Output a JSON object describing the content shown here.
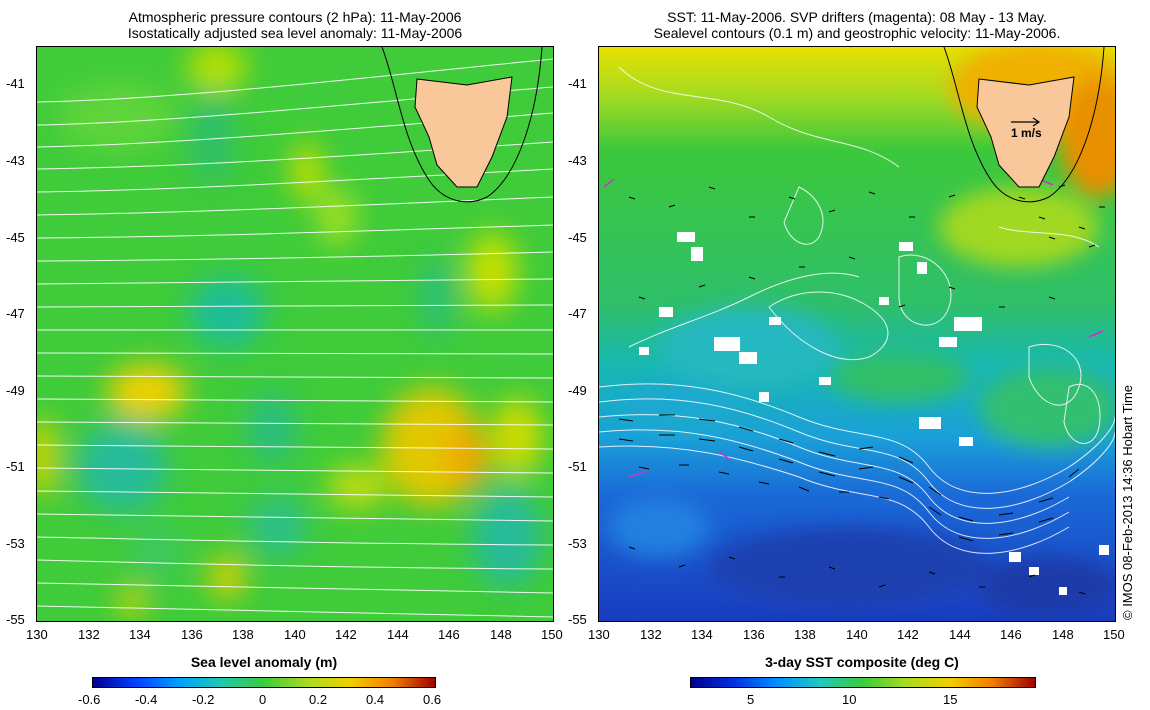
{
  "left_panel": {
    "title_line1": "Atmospheric pressure contours (2 hPa): 11-May-2006",
    "title_line2": "Isostatically adjusted sea level anomaly: 11-May-2006",
    "colorbar_label": "Sea level anomaly (m)",
    "colorbar_ticks": [
      "-0.6",
      "-0.4",
      "-0.2",
      "0",
      "0.2",
      "0.4",
      "0.6"
    ],
    "x_ticks": [
      "130",
      "132",
      "134",
      "136",
      "138",
      "140",
      "142",
      "144",
      "146",
      "148",
      "150"
    ],
    "y_ticks": [
      "-41",
      "-43",
      "-45",
      "-47",
      "-49",
      "-51",
      "-53",
      "-55"
    ]
  },
  "right_panel": {
    "title_line1": "SST: 11-May-2006. SVP drifters (magenta): 08 May - 13 May.",
    "title_line2": "Sealevel contours (0.1 m) and geostrophic velocity: 11-May-2006.",
    "colorbar_label": "3-day SST composite (deg C)",
    "colorbar_ticks": [
      "5",
      "10",
      "15"
    ],
    "x_ticks": [
      "130",
      "132",
      "134",
      "136",
      "138",
      "140",
      "142",
      "144",
      "146",
      "148",
      "150"
    ],
    "y_ticks": [
      "-41",
      "-43",
      "-45",
      "-47",
      "-49",
      "-51",
      "-53",
      "-55"
    ],
    "velocity_scale_label": "1 m/s"
  },
  "credit": "© IMOS 08-Feb-2013 14:36 Hobart Time",
  "colors": {
    "land": "#f8c79a",
    "ocean_mid": "#33cc33",
    "cold": "#1a4fd6",
    "warm": "#f0d000",
    "contour": "#ffffff"
  }
}
